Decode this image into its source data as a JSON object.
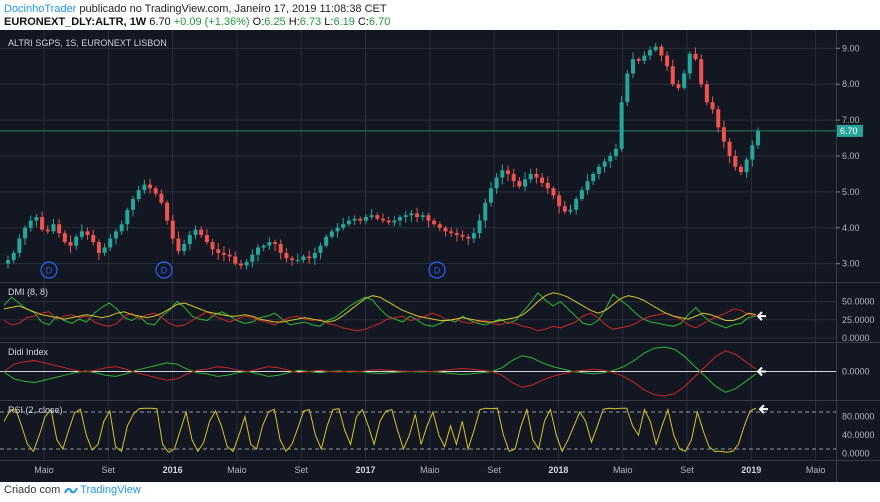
{
  "header": {
    "author": "DocinhoTrader",
    "published": "publicado no TradingView.com, Janeiro 17, 2019 11:08:38 CET",
    "symbol": "EURONEXT_DLY:ALTR, 1W",
    "last": "6.70",
    "change": "+0.09 (+1.36%)",
    "o_label": "O:",
    "o": "6.25",
    "h_label": "H:",
    "h": "6.73",
    "l_label": "L:",
    "l": "6.19",
    "c_label": "C:",
    "c": "6.70"
  },
  "footer": {
    "prefix": "Criado com",
    "brand": "TradingView"
  },
  "colors": {
    "background": "#131722",
    "up": "#26a69a",
    "down": "#ef5350",
    "grid": "#2a2e39",
    "rsi": "#d4c32a",
    "dmi_pos": "#2fb533",
    "dmi_neg": "#c62828",
    "dmi_adx": "#d4c32a",
    "price_line": "#2e7d5b"
  },
  "chart_data": [
    {
      "type": "candlestick",
      "title": "ALTRI SGPS, 1S, EURONEXT LISBON",
      "ylim": [
        2.6,
        9.4
      ],
      "yticks": [
        "9.00",
        "8.00",
        "7.00",
        "6.00",
        "5.00",
        "4.00",
        "3.00"
      ],
      "ytick_values": [
        9,
        8,
        7,
        6,
        5,
        4,
        3
      ],
      "last_price_label": "6.70",
      "last_price": 6.7,
      "dividend_label": "D",
      "dividend_x": [
        "2015-Apr",
        "2015-Dec",
        "2017-Apr"
      ],
      "x_labels": [
        "Maio",
        "Set",
        "2016",
        "Maio",
        "Set",
        "2017",
        "Maio",
        "Set",
        "2018",
        "Maio",
        "Set",
        "2019",
        "Maio"
      ],
      "close_path": [
        3.1,
        3.3,
        3.7,
        4.0,
        4.2,
        4.3,
        3.95,
        3.9,
        4.1,
        3.85,
        3.6,
        3.5,
        3.75,
        3.9,
        3.8,
        3.6,
        3.3,
        3.45,
        3.7,
        3.9,
        4.1,
        4.5,
        4.8,
        5.05,
        5.2,
        5.1,
        4.95,
        4.7,
        4.2,
        3.7,
        3.35,
        3.55,
        3.8,
        3.95,
        3.8,
        3.6,
        3.4,
        3.3,
        3.25,
        3.2,
        3.0,
        2.95,
        3.05,
        3.25,
        3.45,
        3.5,
        3.6,
        3.55,
        3.3,
        3.15,
        3.1,
        3.1,
        3.2,
        3.15,
        3.3,
        3.5,
        3.75,
        3.9,
        4.0,
        4.1,
        4.2,
        4.25,
        4.2,
        4.3,
        4.35,
        4.25,
        4.2,
        4.15,
        4.2,
        4.3,
        4.35,
        4.4,
        4.3,
        4.35,
        4.2,
        4.1,
        4.0,
        3.9,
        3.85,
        3.8,
        3.75,
        3.7,
        3.85,
        4.2,
        4.7,
        5.1,
        5.4,
        5.6,
        5.5,
        5.3,
        5.15,
        5.35,
        5.5,
        5.4,
        5.25,
        5.1,
        4.9,
        4.6,
        4.45,
        4.5,
        4.8,
        5.05,
        5.3,
        5.5,
        5.7,
        5.85,
        6.0,
        6.2,
        7.5,
        8.3,
        8.7,
        8.65,
        8.8,
        8.95,
        9.05,
        8.8,
        8.5,
        8.0,
        7.9,
        8.3,
        8.85,
        8.7,
        8.0,
        7.5,
        7.3,
        6.8,
        6.4,
        6.0,
        5.7,
        5.55,
        5.9,
        6.3,
        6.7
      ]
    },
    {
      "type": "line",
      "title": "DMI (8, 8)",
      "ylim": [
        0,
        70
      ],
      "yticks": [
        "50.0000",
        "25.0000",
        "0.0000"
      ],
      "ytick_values": [
        50,
        25,
        0
      ],
      "series": [
        {
          "values": [
            45,
            56,
            48,
            40,
            35,
            22,
            18,
            30,
            24,
            20,
            26,
            22,
            34,
            42,
            48,
            40,
            28,
            24,
            30,
            20,
            18,
            30,
            38,
            50,
            42,
            30,
            26,
            24,
            32,
            36,
            30,
            24,
            20,
            22,
            28,
            30,
            34,
            26,
            18,
            20,
            22,
            18,
            16,
            24,
            28,
            36,
            44,
            50,
            56,
            52,
            40,
            30,
            26,
            22,
            30,
            24,
            18,
            16,
            20,
            26,
            22,
            30,
            24,
            20,
            18,
            22,
            26,
            20,
            24,
            36,
            48,
            62,
            52,
            44,
            50,
            40,
            30,
            20,
            18,
            24,
            40,
            60,
            52,
            44,
            34,
            26,
            22,
            20,
            18,
            16,
            20,
            32,
            42,
            30,
            22,
            18,
            14,
            18,
            20,
            28,
            30
          ]
        },
        {
          "values": [
            24,
            18,
            20,
            28,
            30,
            34,
            36,
            26,
            30,
            32,
            28,
            30,
            22,
            18,
            16,
            20,
            30,
            34,
            26,
            32,
            34,
            28,
            20,
            16,
            18,
            24,
            30,
            36,
            30,
            26,
            22,
            26,
            30,
            28,
            24,
            22,
            18,
            24,
            28,
            30,
            26,
            24,
            26,
            20,
            18,
            14,
            12,
            10,
            12,
            16,
            20,
            26,
            28,
            30,
            24,
            26,
            30,
            34,
            30,
            24,
            26,
            22,
            20,
            22,
            24,
            20,
            18,
            22,
            20,
            16,
            14,
            10,
            12,
            16,
            14,
            18,
            22,
            30,
            34,
            28,
            18,
            12,
            14,
            16,
            20,
            26,
            30,
            32,
            34,
            30,
            26,
            18,
            14,
            20,
            26,
            30,
            34,
            40,
            38,
            32,
            30
          ]
        },
        {
          "values": [
            40,
            42,
            44,
            40,
            36,
            32,
            30,
            28,
            26,
            28,
            30,
            32,
            30,
            28,
            30,
            34,
            36,
            32,
            30,
            28,
            30,
            34,
            40,
            46,
            48,
            44,
            40,
            36,
            34,
            32,
            30,
            30,
            32,
            30,
            26,
            24,
            22,
            22,
            24,
            26,
            28,
            26,
            24,
            22,
            24,
            30,
            38,
            46,
            54,
            58,
            56,
            50,
            44,
            38,
            34,
            30,
            28,
            26,
            24,
            24,
            26,
            28,
            26,
            24,
            22,
            22,
            24,
            26,
            28,
            32,
            40,
            50,
            58,
            62,
            60,
            56,
            50,
            44,
            38,
            34,
            38,
            46,
            54,
            58,
            56,
            52,
            46,
            40,
            34,
            30,
            28,
            26,
            30,
            34,
            32,
            28,
            24,
            24,
            28,
            34,
            32
          ]
        }
      ]
    },
    {
      "type": "line",
      "title": "Didi Index",
      "ylim": [
        -1,
        1
      ],
      "yticks": [
        "0.0000"
      ],
      "ytick_values": [
        0
      ],
      "series": [
        {
          "values": [
            -0.02,
            -0.3,
            -0.4,
            -0.45,
            -0.35,
            -0.25,
            -0.15,
            -0.05,
            0.02,
            -0.05,
            -0.15,
            -0.2,
            -0.1,
            0.05,
            0.15,
            0.25,
            0.35,
            0.3,
            0.1,
            -0.05,
            -0.1,
            -0.2,
            -0.15,
            -0.05,
            0.0,
            -0.1,
            -0.2,
            -0.15,
            -0.05,
            0.05,
            0.0,
            -0.05,
            0.0,
            0.02,
            -0.02,
            0.0,
            -0.05,
            -0.08,
            -0.05,
            -0.02,
            0.0,
            -0.02,
            0.0,
            -0.03,
            -0.08,
            -0.12,
            -0.1,
            -0.05,
            0.0,
            0.15,
            0.45,
            0.65,
            0.55,
            0.35,
            0.2,
            0.1,
            0.0,
            -0.05,
            -0.1,
            -0.05,
            0.05,
            0.2,
            0.45,
            0.75,
            0.95,
            1.0,
            0.9,
            0.6,
            0.2,
            -0.2,
            -0.6,
            -0.85,
            -0.7,
            -0.4,
            -0.1
          ]
        },
        {
          "values": [
            0.0,
            0.3,
            0.4,
            0.45,
            0.35,
            0.25,
            0.15,
            0.05,
            -0.02,
            0.05,
            0.15,
            0.2,
            0.1,
            -0.05,
            -0.15,
            -0.25,
            -0.35,
            -0.3,
            -0.1,
            0.05,
            0.1,
            0.2,
            0.15,
            0.05,
            0.0,
            0.1,
            0.2,
            0.15,
            0.05,
            -0.05,
            0.0,
            0.05,
            0.0,
            -0.02,
            0.02,
            0.0,
            0.05,
            0.08,
            0.05,
            0.02,
            0.0,
            0.02,
            0.0,
            0.03,
            0.08,
            0.12,
            0.1,
            0.05,
            0.0,
            -0.15,
            -0.45,
            -0.65,
            -0.55,
            -0.35,
            -0.2,
            -0.1,
            0.0,
            0.05,
            0.1,
            0.05,
            -0.05,
            -0.2,
            -0.45,
            -0.75,
            -0.95,
            -1.0,
            -0.9,
            -0.6,
            -0.2,
            0.2,
            0.6,
            0.85,
            0.7,
            0.4,
            0.1
          ]
        }
      ]
    },
    {
      "type": "line",
      "title": "RSI (2, close)",
      "ylim": [
        -5,
        105
      ],
      "yticks": [
        "80.0000",
        "40.0000",
        "0.0000"
      ],
      "ytick_values": [
        80,
        40,
        0
      ],
      "hlines": [
        90,
        10
      ],
      "series": [
        {
          "values": [
            70,
            92,
            95,
            60,
            20,
            5,
            40,
            80,
            95,
            30,
            10,
            50,
            88,
            96,
            40,
            8,
            20,
            70,
            92,
            15,
            5,
            60,
            85,
            97,
            98,
            98,
            97,
            20,
            3,
            10,
            50,
            90,
            30,
            5,
            25,
            70,
            92,
            60,
            15,
            5,
            40,
            80,
            20,
            10,
            60,
            90,
            96,
            30,
            5,
            20,
            55,
            92,
            95,
            40,
            10,
            60,
            95,
            97,
            50,
            20,
            80,
            95,
            60,
            20,
            70,
            92,
            95,
            50,
            10,
            40,
            85,
            20,
            60,
            90,
            40,
            15,
            60,
            20,
            70,
            10,
            50,
            95,
            98,
            97,
            98,
            40,
            5,
            10,
            60,
            95,
            30,
            10,
            70,
            95,
            40,
            5,
            30,
            60,
            90,
            70,
            25,
            60,
            96,
            98,
            97,
            98,
            98,
            60,
            40,
            95,
            70,
            20,
            60,
            95,
            40,
            10,
            5,
            30,
            90,
            50,
            15,
            5,
            5,
            3,
            5,
            20,
            60,
            92,
            98
          ]
        }
      ]
    }
  ]
}
